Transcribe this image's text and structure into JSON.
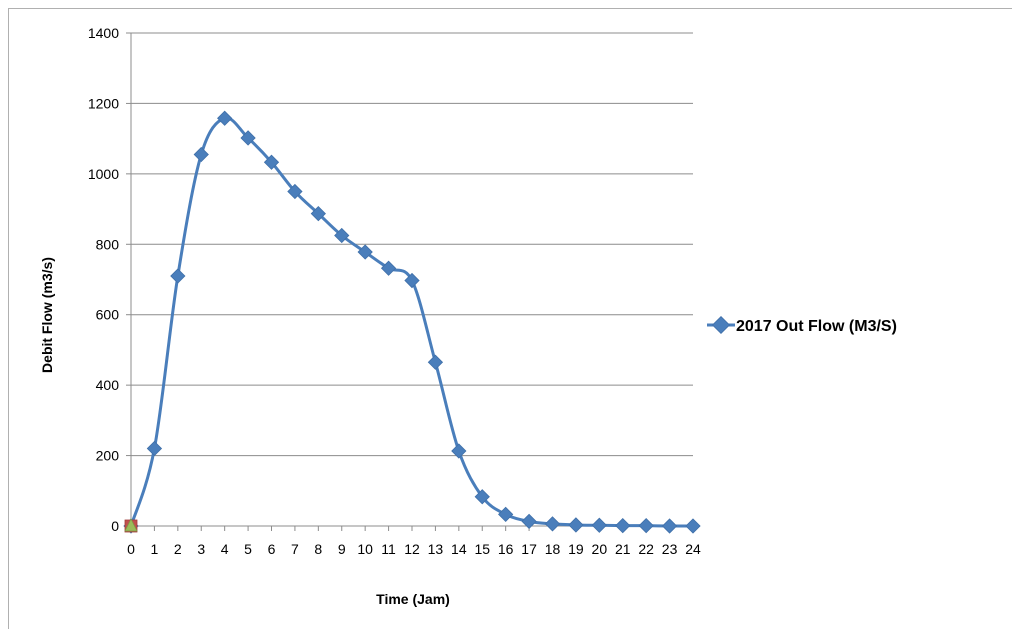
{
  "chart_data": {
    "type": "line",
    "title": "",
    "xlabel": "Time (Jam)",
    "ylabel": "Debit Flow (m3/s)",
    "ylim": [
      0,
      1400
    ],
    "yticks": [
      0,
      200,
      400,
      600,
      800,
      1000,
      1200,
      1400
    ],
    "x": [
      "0",
      "1",
      "2",
      "3",
      "4",
      "5",
      "6",
      "7",
      "8",
      "9",
      "10",
      "11",
      "12",
      "13",
      "14",
      "15",
      "16",
      "17",
      "18",
      "19",
      "20",
      "21",
      "22",
      "23",
      "24"
    ],
    "grid": "horizontal",
    "legend_position": "right",
    "series": [
      {
        "name": "2017 Out Flow (M3/S)",
        "color": "#4a7ebb",
        "marker": "diamond",
        "smooth": true,
        "values": [
          0,
          220,
          710,
          1055,
          1158,
          1102,
          1033,
          950,
          887,
          825,
          778,
          732,
          697,
          465,
          213,
          83,
          33,
          13,
          6,
          3,
          2,
          1,
          1,
          0,
          0
        ]
      }
    ],
    "origin_markers": [
      {
        "shape": "square",
        "color": "#c0504d"
      },
      {
        "shape": "triangle",
        "color": "#9bbb59"
      }
    ]
  }
}
